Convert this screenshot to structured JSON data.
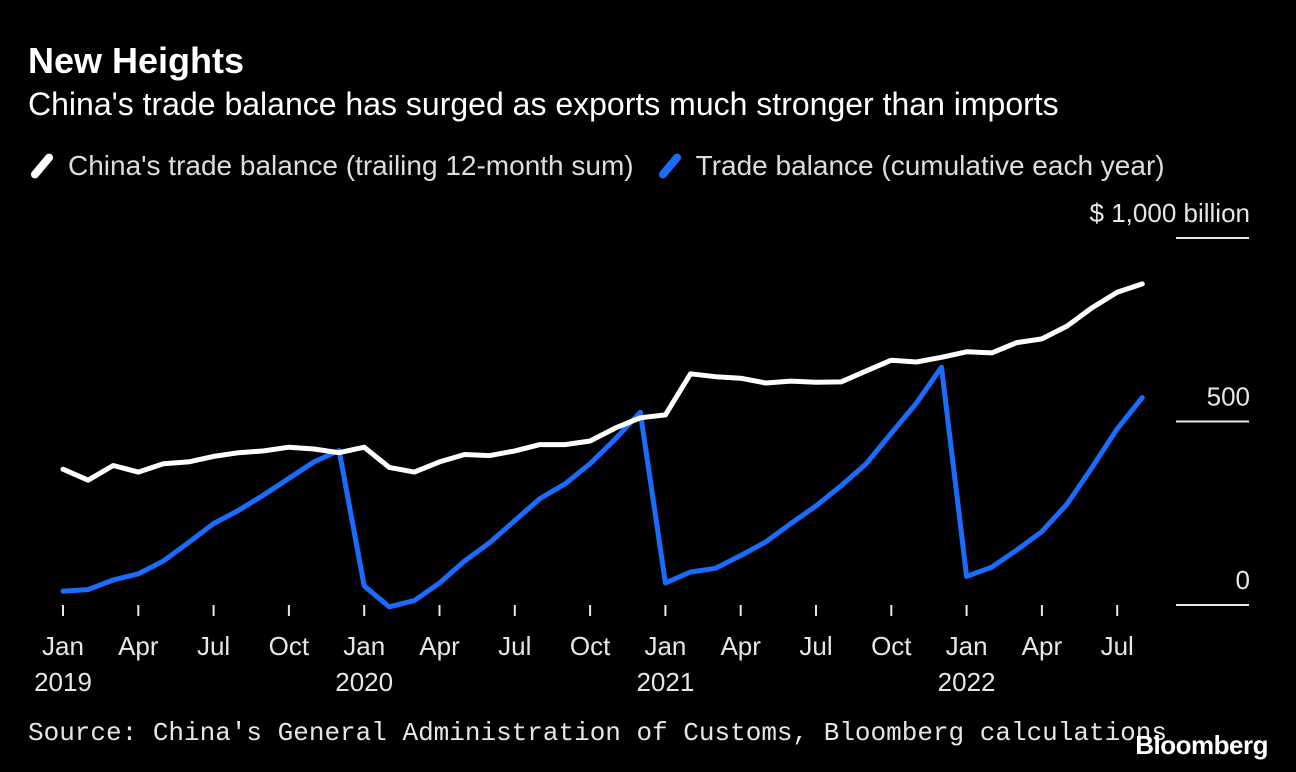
{
  "title": "New Heights",
  "subtitle": "China's trade balance has surged as exports much stronger than imports",
  "source": "Source: China's General Administration of Customs, Bloomberg calculations",
  "brand": "Bloomberg",
  "colors": {
    "background": "#000000",
    "series_white": "#ffffff",
    "series_blue": "#1a6cff",
    "tick": "#ffffff",
    "text": "#e6e6e6"
  },
  "chart_data": {
    "type": "line",
    "legend_position": "top-left",
    "grid": false,
    "y_unit_label": "$ 1,000 billion",
    "ylim": [
      0,
      1000
    ],
    "y_ticks": [
      {
        "value": 1000,
        "label": "$ 1,000 billion"
      },
      {
        "value": 500,
        "label": "500"
      },
      {
        "value": 0,
        "label": "0"
      }
    ],
    "x_ticks": [
      {
        "index": 0,
        "label": "Jan",
        "year": "2019"
      },
      {
        "index": 3,
        "label": "Apr",
        "year": ""
      },
      {
        "index": 6,
        "label": "Jul",
        "year": ""
      },
      {
        "index": 9,
        "label": "Oct",
        "year": ""
      },
      {
        "index": 12,
        "label": "Jan",
        "year": "2020"
      },
      {
        "index": 15,
        "label": "Apr",
        "year": ""
      },
      {
        "index": 18,
        "label": "Jul",
        "year": ""
      },
      {
        "index": 21,
        "label": "Oct",
        "year": ""
      },
      {
        "index": 24,
        "label": "Jan",
        "year": "2021"
      },
      {
        "index": 27,
        "label": "Apr",
        "year": ""
      },
      {
        "index": 30,
        "label": "Jul",
        "year": ""
      },
      {
        "index": 33,
        "label": "Oct",
        "year": ""
      },
      {
        "index": 36,
        "label": "Jan",
        "year": "2022"
      },
      {
        "index": 39,
        "label": "Apr",
        "year": ""
      },
      {
        "index": 42,
        "label": "Jul",
        "year": ""
      }
    ],
    "x": [
      "2019-01",
      "2019-02",
      "2019-03",
      "2019-04",
      "2019-05",
      "2019-06",
      "2019-07",
      "2019-08",
      "2019-09",
      "2019-10",
      "2019-11",
      "2019-12",
      "2020-01",
      "2020-02",
      "2020-03",
      "2020-04",
      "2020-05",
      "2020-06",
      "2020-07",
      "2020-08",
      "2020-09",
      "2020-10",
      "2020-11",
      "2020-12",
      "2021-01",
      "2021-02",
      "2021-03",
      "2021-04",
      "2021-05",
      "2021-06",
      "2021-07",
      "2021-08",
      "2021-09",
      "2021-10",
      "2021-11",
      "2021-12",
      "2022-01",
      "2022-02",
      "2022-03",
      "2022-04",
      "2022-05",
      "2022-06",
      "2022-07",
      "2022-08"
    ],
    "series": [
      {
        "name": "China's trade balance (trailing 12-month sum)",
        "color": "#ffffff",
        "values": [
          370,
          340,
          380,
          362,
          385,
          390,
          405,
          415,
          420,
          430,
          425,
          415,
          430,
          375,
          362,
          390,
          410,
          407,
          420,
          437,
          437,
          447,
          482,
          510,
          518,
          630,
          622,
          618,
          605,
          610,
          607,
          608,
          638,
          667,
          662,
          675,
          690,
          687,
          715,
          725,
          760,
          810,
          852,
          875
        ]
      },
      {
        "name": "Trade balance (cumulative each year)",
        "color": "#1a6cff",
        "values": [
          38,
          42,
          68,
          85,
          120,
          170,
          222,
          258,
          300,
          345,
          390,
          421,
          52,
          -5,
          12,
          60,
          120,
          170,
          230,
          290,
          330,
          385,
          452,
          525,
          60,
          90,
          100,
          135,
          172,
          222,
          270,
          325,
          385,
          468,
          550,
          648,
          78,
          103,
          150,
          200,
          275,
          375,
          480,
          565
        ]
      }
    ]
  }
}
